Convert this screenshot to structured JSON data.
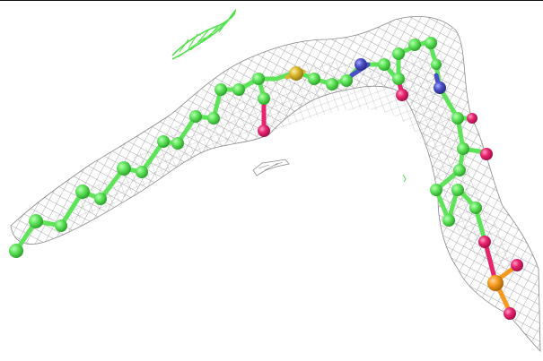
{
  "colors": {
    "carbon": "#5ee35a",
    "carbon_dark": "#2fb52b",
    "oxygen": "#e8246f",
    "nitrogen": "#4a4fc9",
    "sulfur": "#d9b630",
    "phosphorus": "#f59a1e",
    "mesh": "#7a7a7a",
    "fragment": "#4fe04a"
  }
}
